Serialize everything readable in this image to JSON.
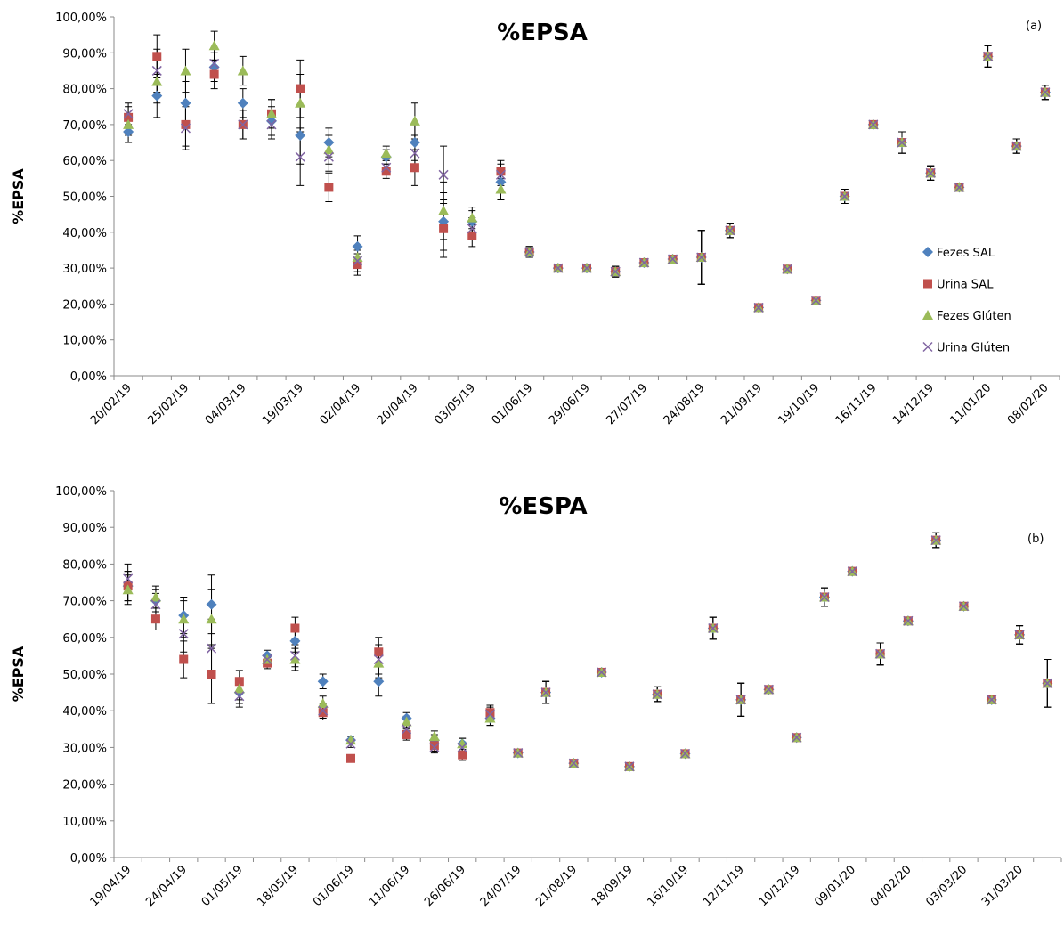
{
  "chart_data": [
    {
      "type": "scatter",
      "title": "%EPSA",
      "annotation": "(a)",
      "y_label": "%EPSA",
      "legend": "right",
      "categories": [
        "20/02/19",
        null,
        "25/02/19",
        null,
        "04/03/19",
        null,
        "19/03/19",
        null,
        "02/04/19",
        null,
        "20/04/19",
        null,
        "03/05/19",
        null,
        "01/06/19",
        null,
        "29/06/19",
        null,
        "27/07/19",
        null,
        "24/08/19",
        null,
        "21/09/19",
        null,
        "19/10/19",
        null,
        "16/11/19",
        null,
        "14/12/19",
        null,
        "11/01/20",
        null,
        "08/02/20"
      ],
      "ylim": [
        0,
        100
      ],
      "yticks": [
        {
          "value": 0,
          "label": "0,00%"
        },
        {
          "value": 10,
          "label": "10,00%"
        },
        {
          "value": 20,
          "label": "20,00%"
        },
        {
          "value": 30,
          "label": "30,00%"
        },
        {
          "value": 40,
          "label": "40,00%"
        },
        {
          "value": 50,
          "label": "50,00%"
        },
        {
          "value": 60,
          "label": "60,00%"
        },
        {
          "value": 70,
          "label": "70,00%"
        },
        {
          "value": 80,
          "label": "80,00%"
        },
        {
          "value": 90,
          "label": "90,00%"
        },
        {
          "value": 100,
          "label": "100,00%"
        }
      ],
      "series": [
        {
          "name": "Fezes SAL",
          "color": "#4f81bd",
          "marker": "diamond",
          "values": [
            68,
            78,
            76,
            86,
            76,
            71,
            67,
            65,
            36,
            61,
            65,
            43,
            43,
            54,
            34.5,
            30,
            30,
            29,
            31.5,
            32.5,
            33,
            40.5,
            19,
            29.7,
            21,
            50,
            70,
            65,
            56.5,
            52.5,
            89,
            64,
            79
          ],
          "errors": [
            3,
            6,
            6,
            4,
            4,
            4,
            8,
            4,
            3,
            2,
            5,
            8,
            3,
            3,
            1.5,
            1,
            1,
            1.5,
            1,
            1,
            7.5,
            2,
            1,
            1,
            1,
            2,
            1,
            3,
            2,
            1,
            3,
            2,
            2
          ]
        },
        {
          "name": "Urina SAL",
          "color": "#c0504d",
          "marker": "square",
          "values": [
            72,
            89,
            70,
            84,
            70,
            73,
            80,
            52.5,
            31,
            57,
            58,
            41,
            39,
            57,
            34.5,
            30,
            30,
            29,
            31.5,
            32.5,
            33,
            40.5,
            19,
            29.7,
            21,
            50,
            70,
            65,
            56.5,
            52.5,
            89,
            64,
            79
          ],
          "errors": [
            3,
            6,
            6,
            4,
            4,
            4,
            8,
            4,
            3,
            2,
            5,
            8,
            3,
            3,
            1.5,
            1,
            1,
            1.5,
            1,
            1,
            7.5,
            2,
            1,
            1,
            1,
            2,
            1,
            3,
            2,
            1,
            3,
            2,
            2
          ]
        },
        {
          "name": "Fezes Glúten",
          "color": "#9bbb59",
          "marker": "triangle",
          "values": [
            70,
            82,
            85,
            92,
            85,
            73,
            76,
            63,
            33,
            62,
            71,
            46,
            44,
            52,
            34.5,
            30,
            30,
            29,
            31.5,
            32.5,
            33,
            40.5,
            19,
            29.7,
            21,
            50,
            70,
            65,
            56.5,
            52.5,
            89,
            64,
            79
          ],
          "errors": [
            3,
            6,
            6,
            4,
            4,
            4,
            8,
            4,
            3,
            2,
            5,
            8,
            3,
            3,
            1.5,
            1,
            1,
            1.5,
            1,
            1,
            7.5,
            2,
            1,
            1,
            1,
            2,
            1,
            3,
            2,
            1,
            3,
            2,
            2
          ]
        },
        {
          "name": "Urina Glúten",
          "color": "#8064a2",
          "marker": "x",
          "values": [
            73,
            85,
            69,
            87,
            70,
            70,
            61,
            61,
            32,
            58,
            62,
            56,
            41,
            56,
            34.5,
            30,
            30,
            29,
            31.5,
            32.5,
            33,
            40.5,
            19,
            29.7,
            21,
            50,
            70,
            65,
            56.5,
            52.5,
            89,
            64,
            79
          ],
          "errors": [
            3,
            6,
            6,
            4,
            4,
            4,
            8,
            4,
            3,
            2,
            5,
            8,
            3,
            3,
            1.5,
            1,
            1,
            1.5,
            1,
            1,
            7.5,
            2,
            1,
            1,
            1,
            2,
            1,
            3,
            2,
            1,
            3,
            2,
            2
          ]
        }
      ]
    },
    {
      "type": "scatter",
      "title": "%ESPA",
      "annotation": "(b)",
      "y_label": "%EPSA",
      "categories": [
        "19/04/19",
        null,
        "24/04/19",
        null,
        "01/05/19",
        null,
        "18/05/19",
        null,
        "01/06/19",
        null,
        "11/06/19",
        null,
        "26/06/19",
        null,
        "24/07/19",
        null,
        "21/08/19",
        null,
        "18/09/19",
        null,
        "16/10/19",
        null,
        "12/11/19",
        null,
        "10/12/19",
        null,
        "09/01/20",
        null,
        "04/02/20",
        null,
        "03/03/20",
        null,
        "31/03/20",
        null
      ],
      "ylim": [
        0,
        100
      ],
      "yticks": [
        {
          "value": 0,
          "label": "0,00%"
        },
        {
          "value": 10,
          "label": "10,00%"
        },
        {
          "value": 20,
          "label": "20,00%"
        },
        {
          "value": 30,
          "label": "30,00%"
        },
        {
          "value": 40,
          "label": "40,00%"
        },
        {
          "value": 50,
          "label": "50,00%"
        },
        {
          "value": 60,
          "label": "60,00%"
        },
        {
          "value": 70,
          "label": "70,00%"
        },
        {
          "value": 80,
          "label": "80,00%"
        },
        {
          "value": 90,
          "label": "90,00%"
        },
        {
          "value": 100,
          "label": "100,00%"
        }
      ],
      "series": [
        {
          "color": "#4f81bd",
          "marker": "diamond",
          "values": [
            74,
            70,
            66,
            69,
            45,
            55,
            59,
            48,
            32,
            48,
            38,
            32,
            31,
            38,
            28.5,
            45,
            25.7,
            50.5,
            24.8,
            44.5,
            28.3,
            62.5,
            43,
            45.8,
            32.7,
            71,
            78,
            55.5,
            64.5,
            86.5,
            68.5,
            43,
            60.7,
            47.5
          ],
          "errors": [
            4,
            3,
            5,
            8,
            3,
            1.5,
            3,
            2,
            1,
            4,
            1.5,
            1.5,
            1.5,
            2,
            1,
            3,
            1,
            1,
            1,
            2,
            1,
            3,
            4.5,
            1,
            1,
            2.5,
            1,
            3,
            1,
            2,
            1,
            1,
            2.5,
            6.5
          ]
        },
        {
          "color": "#c0504d",
          "marker": "square",
          "values": [
            74,
            65,
            54,
            50,
            48,
            53,
            62.5,
            39.5,
            27,
            56,
            33.5,
            30.5,
            28,
            39.5,
            28.5,
            45,
            25.7,
            50.5,
            24.8,
            44.5,
            28.3,
            62.5,
            43,
            45.8,
            32.7,
            71,
            78,
            55.5,
            64.5,
            86.5,
            68.5,
            43,
            60.7,
            47.5
          ],
          "errors": [
            4,
            3,
            5,
            8,
            3,
            1.5,
            3,
            2,
            1,
            4,
            1.5,
            1.5,
            1.5,
            2,
            1,
            3,
            1,
            1,
            1,
            2,
            1,
            3,
            4.5,
            1,
            1,
            2.5,
            1,
            3,
            1,
            2,
            1,
            1,
            2.5,
            6.5
          ]
        },
        {
          "color": "#9bbb59",
          "marker": "triangle",
          "values": [
            73,
            71,
            65,
            65,
            46,
            54,
            54,
            42,
            32,
            53,
            37,
            33,
            31,
            38,
            28.5,
            45,
            25.7,
            50.5,
            24.8,
            44.5,
            28.3,
            62.5,
            43,
            45.8,
            32.7,
            71,
            78,
            55.5,
            64.5,
            86.5,
            68.5,
            43,
            60.7,
            47.5
          ],
          "errors": [
            4,
            3,
            5,
            8,
            3,
            1.5,
            3,
            2,
            1,
            4,
            1.5,
            1.5,
            1.5,
            2,
            1,
            3,
            1,
            1,
            1,
            2,
            1,
            3,
            4.5,
            1,
            1,
            2.5,
            1,
            3,
            1,
            2,
            1,
            1,
            2.5,
            6.5
          ]
        },
        {
          "color": "#8064a2",
          "marker": "x",
          "values": [
            76,
            69,
            61,
            57,
            44,
            54,
            55,
            40,
            31,
            54,
            35,
            30,
            30,
            39,
            28.5,
            45,
            25.7,
            50.5,
            24.8,
            44.5,
            28.3,
            62.5,
            43,
            45.8,
            32.7,
            71,
            78,
            55.5,
            64.5,
            86.5,
            68.5,
            43,
            60.7,
            47.5
          ],
          "errors": [
            4,
            3,
            5,
            8,
            3,
            1.5,
            3,
            2,
            1,
            4,
            1.5,
            1.5,
            1.5,
            2,
            1,
            3,
            1,
            1,
            1,
            2,
            1,
            3,
            4.5,
            1,
            1,
            2.5,
            1,
            3,
            1,
            2,
            1,
            1,
            2.5,
            6.5
          ]
        }
      ]
    }
  ]
}
